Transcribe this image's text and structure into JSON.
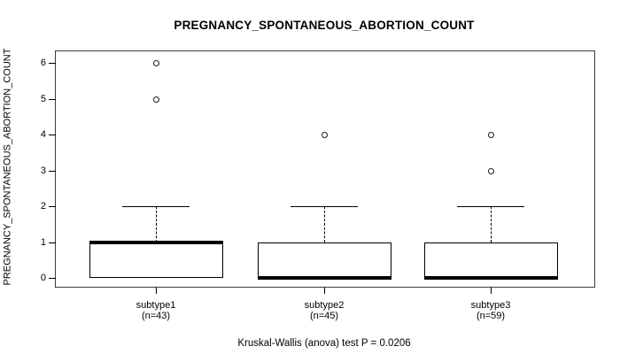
{
  "chart_data": {
    "type": "boxplot",
    "title": "PREGNANCY_SPONTANEOUS_ABORTION_COUNT",
    "ylabel": "PREGNANCY_SPONTANEOUS_ABORTION_COUNT",
    "xlabel": "",
    "caption": "Kruskal-Wallis (anova) test P = 0.0206",
    "ylim": [
      0,
      6
    ],
    "yticks": [
      0,
      1,
      2,
      3,
      4,
      5,
      6
    ],
    "grid": false,
    "legend": "none",
    "groups": [
      {
        "label": "subtype1",
        "sublabel": "(n=43)",
        "n": 43,
        "q1": 0,
        "median": 1,
        "q3": 1,
        "whisker_low": 0,
        "whisker_high": 2,
        "outliers": [
          5,
          6
        ]
      },
      {
        "label": "subtype2",
        "sublabel": "(n=45)",
        "n": 45,
        "q1": 0,
        "median": 0,
        "q3": 1,
        "whisker_low": 0,
        "whisker_high": 2,
        "outliers": [
          4
        ]
      },
      {
        "label": "subtype3",
        "sublabel": "(n=59)",
        "n": 59,
        "q1": 0,
        "median": 0,
        "q3": 1,
        "whisker_low": 0,
        "whisker_high": 2,
        "outliers": [
          3,
          4
        ]
      }
    ],
    "colors": {
      "line": "#000000",
      "box_fill": "#ffffff",
      "plot_border": "#3c3c3c",
      "background": "#ffffff"
    }
  }
}
